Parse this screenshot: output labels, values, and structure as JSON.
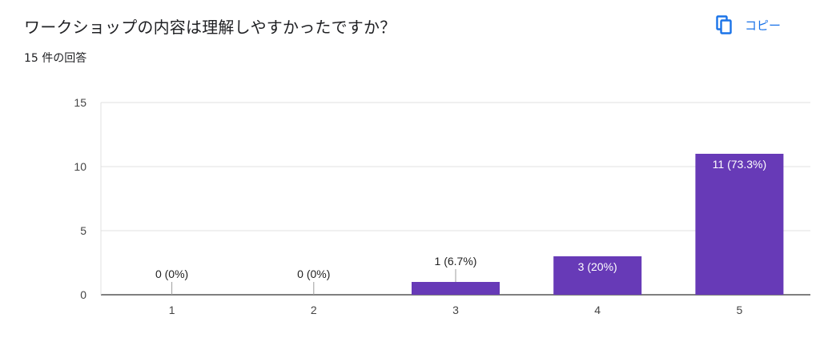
{
  "question": {
    "title": "ワークショップの内容は理解しやすかったですか？",
    "response_count": "15 件の回答"
  },
  "toolbar": {
    "copy_label": "コピー",
    "copy_icon": "copy-icon"
  },
  "colors": {
    "bar": "#673ab7",
    "accent": "#1a73e8"
  },
  "chart_data": {
    "type": "bar",
    "categories": [
      "1",
      "2",
      "3",
      "4",
      "5"
    ],
    "values": [
      0,
      0,
      1,
      3,
      11
    ],
    "data_labels": [
      "0 (0%)",
      "0 (0%)",
      "1 (6.7%)",
      "3 (20%)",
      "11 (73.3%)"
    ],
    "yticks": [
      "0",
      "5",
      "10",
      "15"
    ],
    "ylim": [
      0,
      15
    ],
    "grid": true
  }
}
